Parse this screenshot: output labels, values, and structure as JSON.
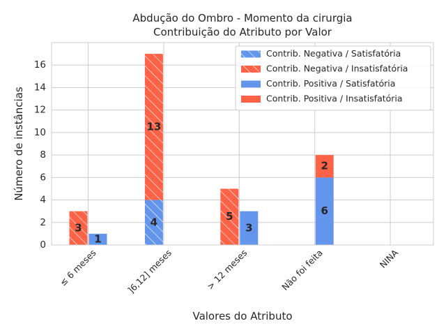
{
  "colors": {
    "satisfatoria": "#6495ED",
    "insatisfatoria": "#FF6347",
    "grid": "#cccccc",
    "axes": "#cccccc",
    "text": "#262626"
  },
  "chart_data": {
    "type": "bar",
    "title_line1": "Abdução do Ombro - Momento da cirurgia",
    "title_line2": "Contribuição do Atributo por Valor",
    "xlabel": "Valores do Atributo",
    "ylabel": "Número de instâncias",
    "categories": [
      "≤ 6 meses",
      "]6,12] meses",
      "> 12 meses",
      "Não foi feita",
      "NINA"
    ],
    "ylim": [
      0,
      18
    ],
    "yticks": [
      0,
      2,
      4,
      6,
      8,
      10,
      12,
      14,
      16
    ],
    "grid": true,
    "legend_position": "top-right",
    "series": [
      {
        "name": "Contrib. Negativa / Satisfatória",
        "values": [
          0,
          4,
          0,
          0,
          0
        ],
        "color": "#6495ED",
        "hatch": true,
        "group": "negativa"
      },
      {
        "name": "Contrib. Negativa / Insatisfatória",
        "values": [
          3,
          13,
          5,
          0,
          0
        ],
        "color": "#FF6347",
        "hatch": true,
        "group": "negativa"
      },
      {
        "name": "Contrib. Positiva / Satisfatória",
        "values": [
          1,
          0,
          3,
          6,
          0
        ],
        "color": "#6495ED",
        "hatch": false,
        "group": "positiva"
      },
      {
        "name": "Contrib. Positiva / Insatisfatória",
        "values": [
          0,
          0,
          0,
          2,
          0
        ],
        "color": "#FF6347",
        "hatch": false,
        "group": "positiva"
      }
    ]
  }
}
